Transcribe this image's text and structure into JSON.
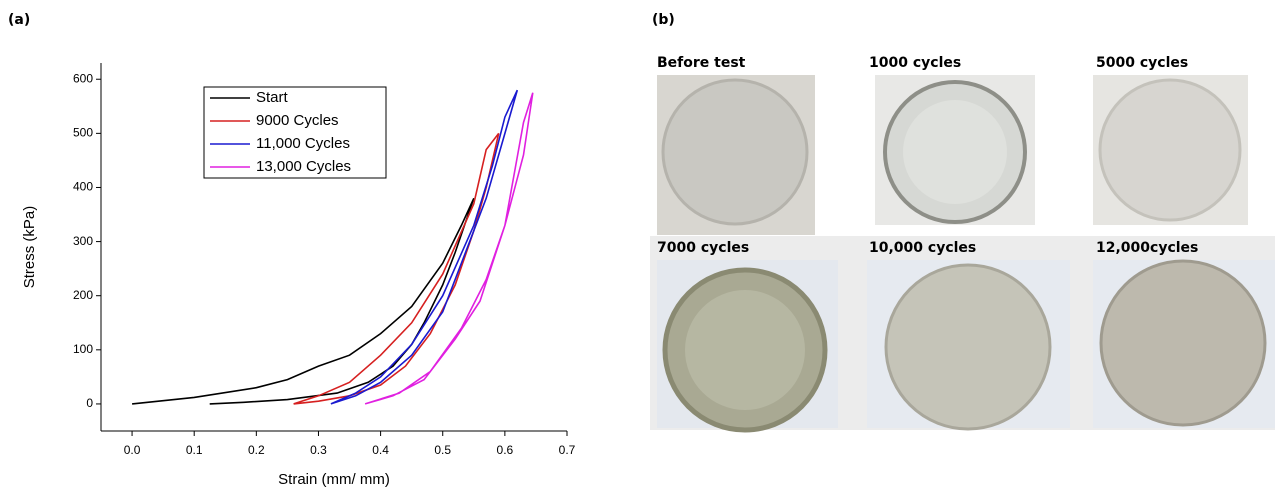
{
  "panel_a_label": "(a)",
  "panel_b_label": "(b)",
  "photos": [
    "Before test",
    "1000 cycles",
    "5000 cycles",
    "7000 cycles",
    "10,000 cycles",
    "12,000cycles"
  ],
  "chart_data": {
    "type": "line",
    "xlabel": "Strain (mm/ mm)",
    "ylabel": "Stress (kPa)",
    "xlim": [
      -0.05,
      0.7
    ],
    "ylim": [
      -50,
      630
    ],
    "xticks": [
      {
        "value": 0,
        "label": "0.0"
      },
      0.1,
      0.2,
      0.3,
      0.4,
      0.5,
      0.6,
      0.7
    ],
    "yticks": [
      0,
      100,
      200,
      300,
      400,
      500,
      600
    ],
    "legend": "top",
    "series": [
      {
        "name": "Start",
        "color": "#000000",
        "x": [
          0,
          0.1,
          0.2,
          0.25,
          0.3,
          0.35,
          0.4,
          0.45,
          0.5,
          0.53,
          0.55,
          0.52,
          0.5,
          0.47,
          0.45,
          0.42,
          0.38,
          0.33,
          0.25,
          0.18,
          0.125
        ],
        "values": [
          0,
          12,
          30,
          45,
          70,
          90,
          130,
          180,
          260,
          330,
          380,
          280,
          220,
          150,
          110,
          70,
          40,
          20,
          8,
          3,
          0
        ]
      },
      {
        "name": "9000 Cycles",
        "color": "#d62020",
        "x": [
          0.26,
          0.3,
          0.35,
          0.4,
          0.45,
          0.5,
          0.55,
          0.57,
          0.59,
          0.57,
          0.55,
          0.52,
          0.48,
          0.44,
          0.4,
          0.35,
          0.3,
          0.26
        ],
        "values": [
          0,
          15,
          40,
          90,
          150,
          240,
          370,
          470,
          500,
          400,
          320,
          220,
          130,
          70,
          35,
          15,
          5,
          0
        ]
      },
      {
        "name": "11,000 Cycles",
        "color": "#1a1ad0",
        "x": [
          0.32,
          0.36,
          0.4,
          0.45,
          0.5,
          0.55,
          0.58,
          0.6,
          0.62,
          0.6,
          0.57,
          0.53,
          0.5,
          0.45,
          0.4,
          0.36,
          0.32
        ],
        "values": [
          0,
          20,
          50,
          110,
          200,
          330,
          440,
          530,
          580,
          500,
          380,
          260,
          170,
          90,
          40,
          15,
          0
        ]
      },
      {
        "name": "13,000 Cycles",
        "color": "#e020e0",
        "x": [
          0.375,
          0.42,
          0.47,
          0.52,
          0.56,
          0.6,
          0.63,
          0.645,
          0.63,
          0.6,
          0.57,
          0.53,
          0.48,
          0.43,
          0.375
        ],
        "values": [
          0,
          15,
          45,
          120,
          190,
          330,
          520,
          575,
          460,
          330,
          230,
          140,
          60,
          20,
          0
        ]
      }
    ]
  }
}
